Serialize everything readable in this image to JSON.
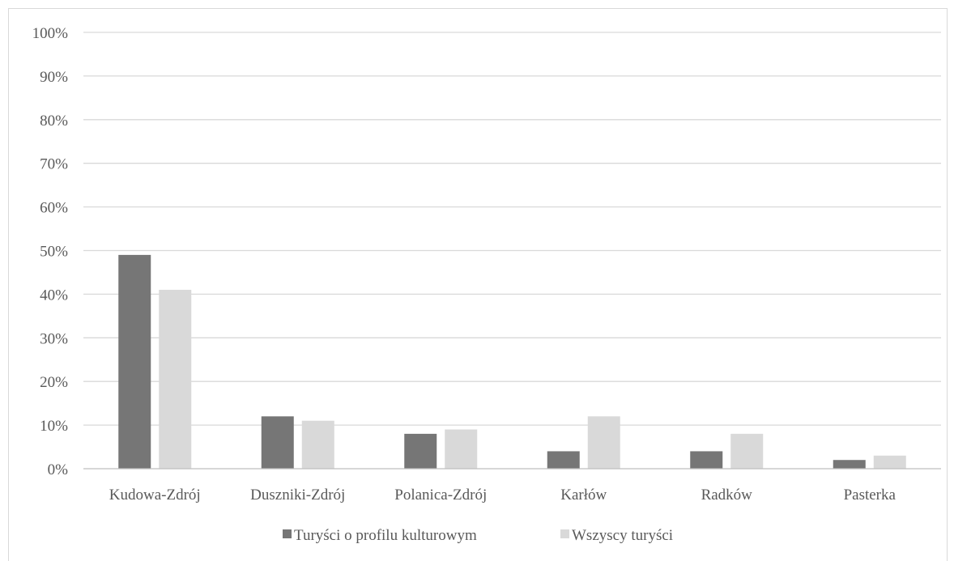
{
  "chart_data": {
    "type": "bar",
    "categories": [
      "Kudowa-Zdrój",
      "Duszniki-Zdrój",
      "Polanica-Zdrój",
      "Karłów",
      "Radków",
      "Pasterka"
    ],
    "series": [
      {
        "name": "Turyści o profilu kulturowym",
        "values": [
          49,
          12,
          8,
          4,
          4,
          2
        ],
        "color": "#767676"
      },
      {
        "name": "Wszyscy turyści",
        "values": [
          41,
          11,
          9,
          12,
          8,
          3
        ],
        "color": "#d9d9d9"
      }
    ],
    "y_ticks": [
      "0%",
      "10%",
      "20%",
      "30%",
      "40%",
      "50%",
      "60%",
      "70%",
      "80%",
      "90%",
      "100%"
    ],
    "ylim": [
      0,
      100
    ],
    "grid": true,
    "legend_position": "bottom",
    "colors": {
      "grid": "#d9d9d9",
      "axis": "#bfbfbf",
      "text": "#595959"
    }
  }
}
